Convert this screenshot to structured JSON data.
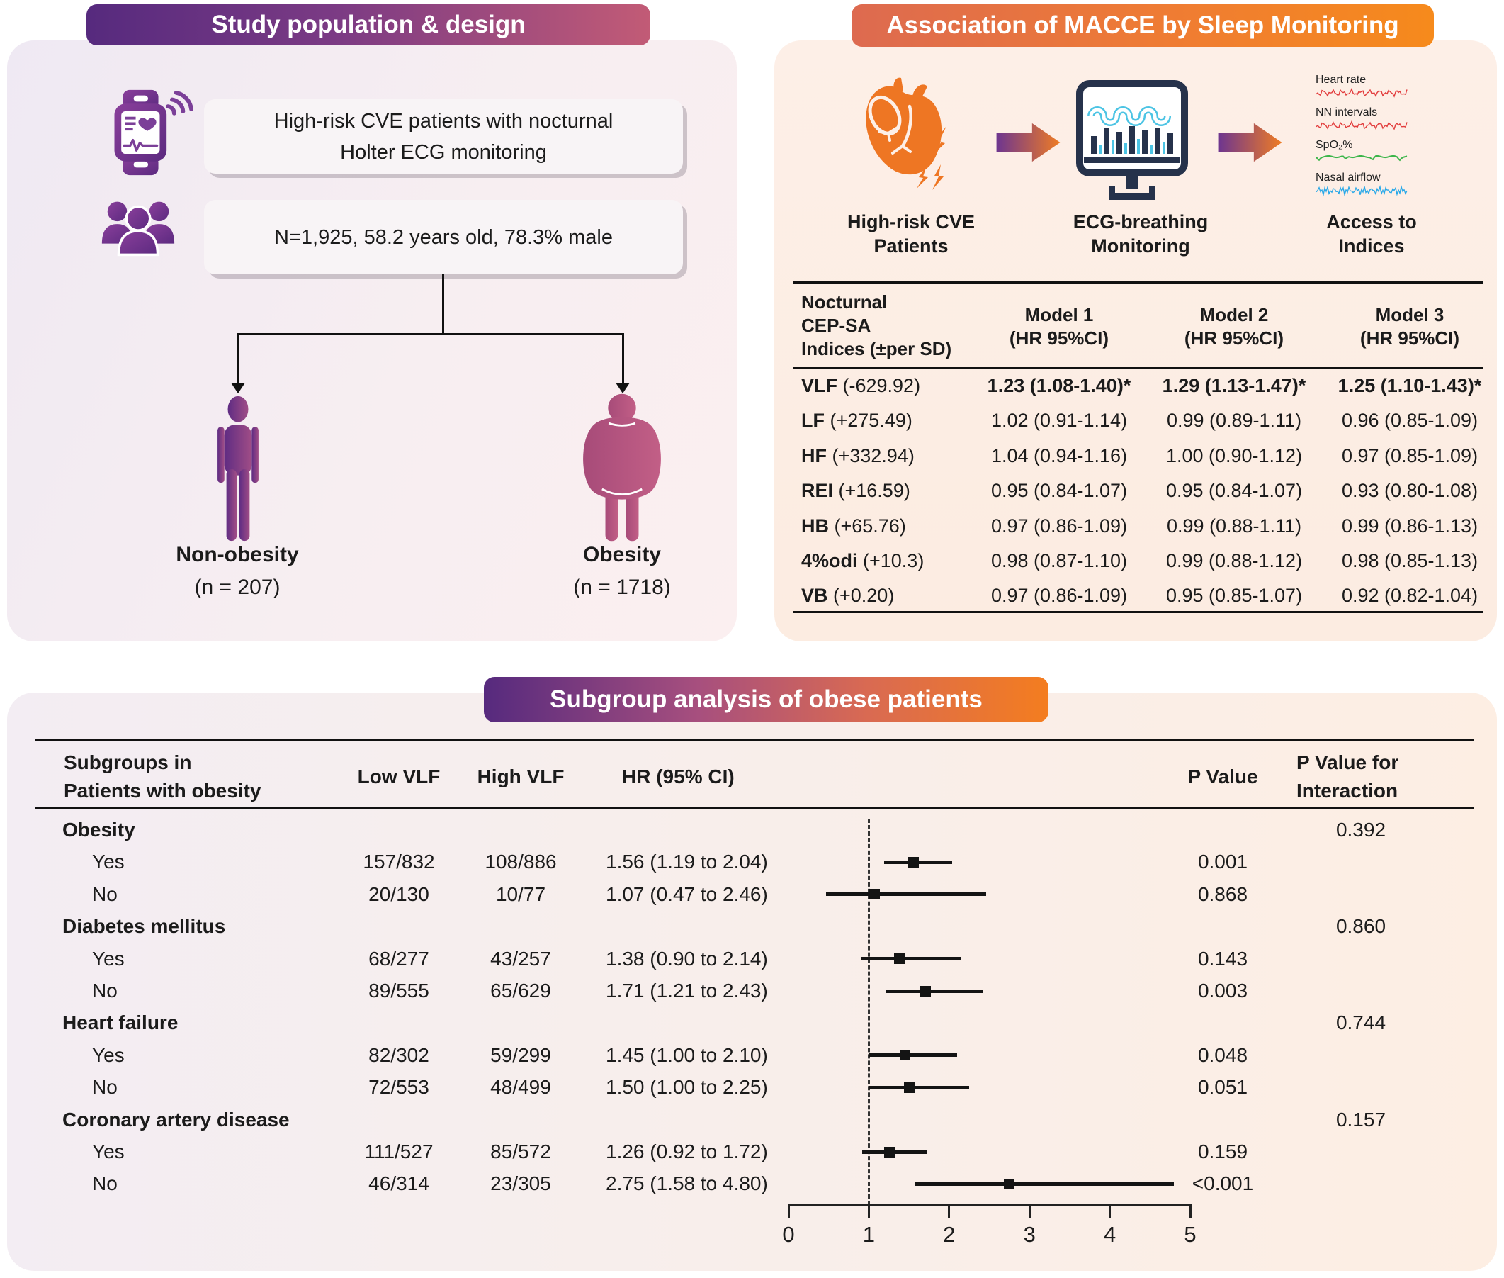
{
  "colors": {
    "purple_dark": "#562a7e",
    "pink": "#c25b76",
    "orange": "#f5821f",
    "heart_orange": "#ee7623",
    "monitor_navy": "#26324b",
    "cyan": "#4cc4e4",
    "icon_purple": "#7b3f98",
    "forest_black": "#141414",
    "trace_red": "#e23d3d",
    "trace_green": "#3cb54a",
    "trace_blue": "#29a8e8"
  },
  "study": {
    "header": "Study population & design",
    "box1_line1": "High-risk CVE patients with nocturnal",
    "box1_line2": "Holter ECG monitoring",
    "box2": "N=1,925, 58.2 years old, 78.3% male",
    "branches": [
      {
        "label": "Non-obesity",
        "n": "(n = 207)"
      },
      {
        "label": "Obesity",
        "n": "(n = 1718)"
      }
    ]
  },
  "macce": {
    "header": "Association of MACCE by Sleep Monitoring",
    "steps": [
      {
        "caption_line1": "High-risk CVE",
        "caption_line2": "Patients"
      },
      {
        "caption_line1": "ECG-breathing",
        "caption_line2": "Monitoring"
      },
      {
        "caption_line1": "Access to",
        "caption_line2": "Indices"
      }
    ],
    "traces": [
      {
        "label": "Heart rate",
        "color": "#e23d3d",
        "wave": "jag"
      },
      {
        "label": "NN intervals",
        "color": "#e23d3d",
        "wave": "jag"
      },
      {
        "label": "SpO₂%",
        "color": "#3cb54a",
        "wave": "smooth"
      },
      {
        "label": "Nasal airflow",
        "color": "#29a8e8",
        "wave": "dense"
      }
    ],
    "table": {
      "col0_l1": "Nocturnal",
      "col0_l2": "CEP-SA",
      "col0_l3": "Indices (±per SD)",
      "models": [
        {
          "l1": "Model 1",
          "l2": "(HR 95%CI)"
        },
        {
          "l1": "Model 2",
          "l2": "(HR 95%CI)"
        },
        {
          "l1": "Model 3",
          "l2": "(HR 95%CI)"
        }
      ],
      "rows": [
        {
          "name": "VLF",
          "delta": "(-629.92)",
          "bold": true,
          "values": [
            "1.23 (1.08-1.40)*",
            "1.29 (1.13-1.47)*",
            "1.25 (1.10-1.43)*"
          ]
        },
        {
          "name": "LF",
          "delta": "(+275.49)",
          "bold": false,
          "values": [
            "1.02 (0.91-1.14)",
            "0.99 (0.89-1.11)",
            "0.96 (0.85-1.09)"
          ]
        },
        {
          "name": "HF",
          "delta": "(+332.94)",
          "bold": false,
          "values": [
            "1.04 (0.94-1.16)",
            "1.00 (0.90-1.12)",
            "0.97 (0.85-1.09)"
          ]
        },
        {
          "name": "REI",
          "delta": "(+16.59)",
          "bold": false,
          "values": [
            "0.95 (0.84-1.07)",
            "0.95 (0.84-1.07)",
            "0.93 (0.80-1.08)"
          ]
        },
        {
          "name": "HB",
          "delta": "(+65.76)",
          "bold": false,
          "values": [
            "0.97 (0.86-1.09)",
            "0.99 (0.88-1.11)",
            "0.99 (0.86-1.13)"
          ]
        },
        {
          "name": "4%odi",
          "delta": "(+10.3)",
          "bold": false,
          "values": [
            "0.98 (0.87-1.10)",
            "0.99 (0.88-1.12)",
            "0.98 (0.85-1.13)"
          ]
        },
        {
          "name": "VB",
          "delta": "(+0.20)",
          "bold": false,
          "values": [
            "0.97 (0.86-1.09)",
            "0.95 (0.85-1.07)",
            "0.92 (0.82-1.04)"
          ]
        }
      ]
    }
  },
  "subgroup": {
    "header": "Subgroup analysis of obese patients",
    "columns": {
      "col1_l1": "Subgroups in",
      "col1_l2": "Patients with obesity",
      "low": "Low VLF",
      "high": "High VLF",
      "hr": "HR (95% CI)",
      "p": "P Value",
      "pint_l1": "P Value for",
      "pint_l2": "Interaction"
    }
  },
  "chart_data": {
    "type": "forest",
    "title": "Subgroup analysis of obese patients",
    "x_range": [
      0,
      5
    ],
    "axis_ticks": [
      0,
      1,
      2,
      3,
      4,
      5
    ],
    "reference_line": 1,
    "rows": [
      {
        "group": "Obesity",
        "p_interaction": "0.392"
      },
      {
        "label": "Yes",
        "low_vlf": "157/832",
        "high_vlf": "108/886",
        "hr_text": "1.56 (1.19 to 2.04)",
        "est": 1.56,
        "lo": 1.19,
        "hi": 2.04,
        "p": "0.001"
      },
      {
        "label": "No",
        "low_vlf": "20/130",
        "high_vlf": "10/77",
        "hr_text": "1.07 (0.47 to 2.46)",
        "est": 1.07,
        "lo": 0.47,
        "hi": 2.46,
        "p": "0.868"
      },
      {
        "group": "Diabetes mellitus",
        "p_interaction": "0.860"
      },
      {
        "label": "Yes",
        "low_vlf": "68/277",
        "high_vlf": "43/257",
        "hr_text": "1.38 (0.90 to 2.14)",
        "est": 1.38,
        "lo": 0.9,
        "hi": 2.14,
        "p": "0.143"
      },
      {
        "label": "No",
        "low_vlf": "89/555",
        "high_vlf": "65/629",
        "hr_text": "1.71 (1.21 to 2.43)",
        "est": 1.71,
        "lo": 1.21,
        "hi": 2.43,
        "p": "0.003"
      },
      {
        "group": "Heart failure",
        "p_interaction": "0.744"
      },
      {
        "label": "Yes",
        "low_vlf": "82/302",
        "high_vlf": "59/299",
        "hr_text": "1.45 (1.00 to 2.10)",
        "est": 1.45,
        "lo": 1.0,
        "hi": 2.1,
        "p": "0.048"
      },
      {
        "label": "No",
        "low_vlf": "72/553",
        "high_vlf": "48/499",
        "hr_text": "1.50 (1.00 to 2.25)",
        "est": 1.5,
        "lo": 1.0,
        "hi": 2.25,
        "p": "0.051"
      },
      {
        "group": "Coronary artery disease",
        "p_interaction": "0.157"
      },
      {
        "label": "Yes",
        "low_vlf": "111/527",
        "high_vlf": "85/572",
        "hr_text": "1.26 (0.92 to 1.72)",
        "est": 1.26,
        "lo": 0.92,
        "hi": 1.72,
        "p": "0.159"
      },
      {
        "label": "No",
        "low_vlf": "46/314",
        "high_vlf": "23/305",
        "hr_text": "2.75 (1.58 to 4.80)",
        "est": 2.75,
        "lo": 1.58,
        "hi": 4.8,
        "p": "<0.001"
      }
    ]
  }
}
